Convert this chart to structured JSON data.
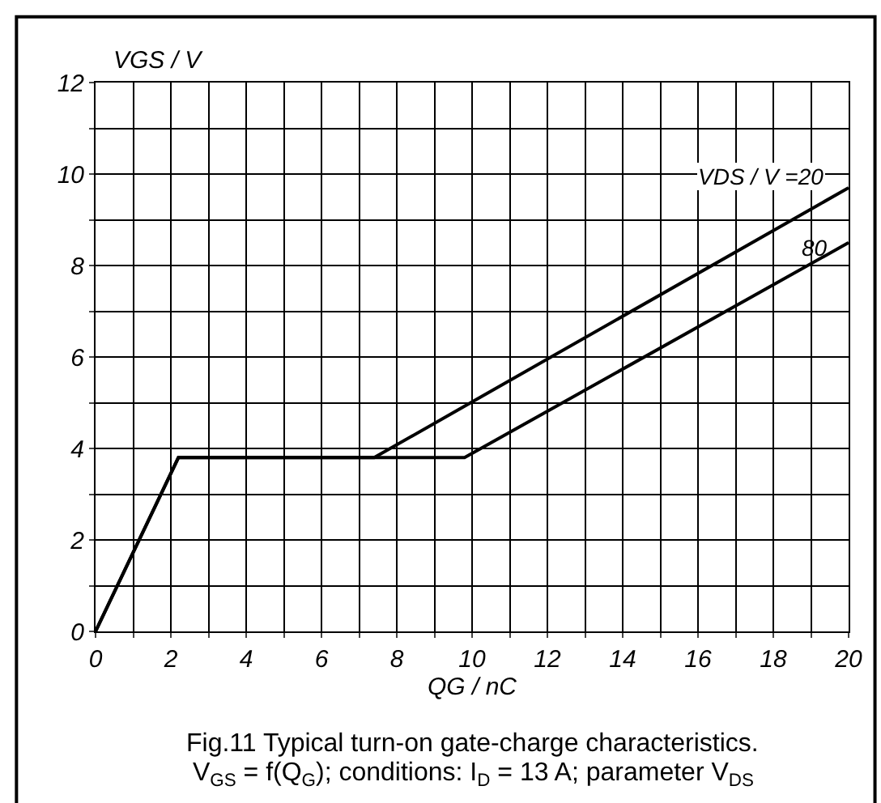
{
  "chart_data": {
    "type": "line",
    "xlabel": "QG / nC",
    "ylabel": "VGS / V",
    "series": [
      {
        "name": "VDS / V =20",
        "color": "#000000",
        "x": [
          0,
          2.2,
          7.4,
          20
        ],
        "values": [
          0,
          3.8,
          3.8,
          9.7
        ]
      },
      {
        "name": "80",
        "color": "#000000",
        "x": [
          0,
          2.2,
          9.8,
          20
        ],
        "values": [
          0,
          3.8,
          3.8,
          8.5
        ]
      }
    ],
    "xlim": [
      0,
      20
    ],
    "ylim": [
      0,
      12
    ],
    "xticks": [
      0,
      {
        "value": 1,
        "label": null
      },
      2,
      {
        "value": 3,
        "label": null
      },
      4,
      {
        "value": 5,
        "label": null
      },
      6,
      {
        "value": 7,
        "label": null
      },
      8,
      {
        "value": 9,
        "label": null
      },
      10,
      {
        "value": 11,
        "label": null
      },
      12,
      {
        "value": 13,
        "label": null
      },
      14,
      {
        "value": 15,
        "label": null
      },
      16,
      {
        "value": 17,
        "label": null
      },
      18,
      {
        "value": 19,
        "label": null
      },
      20
    ],
    "yticks": [
      0,
      {
        "value": 1,
        "label": null
      },
      2,
      {
        "value": 3,
        "label": null
      },
      4,
      {
        "value": 5,
        "label": null
      },
      6,
      {
        "value": 7,
        "label": null
      },
      8,
      {
        "value": 9,
        "label": null
      },
      10,
      {
        "value": 11,
        "label": null
      },
      12
    ],
    "grid": true,
    "legend": false,
    "marker": "none",
    "line_style": "solid",
    "annotations": [
      "Fig.11 Typical turn-on gate-charge characteristics.",
      "V$_{GS}$ = f(Q$_{G}$); conditions: I$_{D}$ = 13 A; parameter V$_{DS}$"
    ]
  }
}
